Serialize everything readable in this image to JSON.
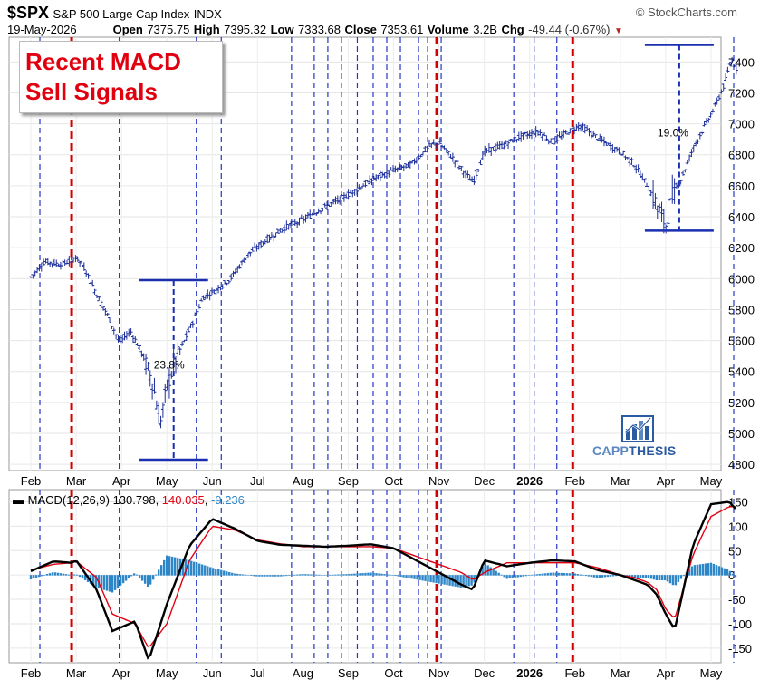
{
  "header": {
    "symbol": "$SPX",
    "name": "S&P 500 Large Cap Index",
    "exchange": "INDX",
    "date": "19-May-2026",
    "open_label": "Open",
    "open": "7375.75",
    "high_label": "High",
    "high": "7395.32",
    "low_label": "Low",
    "low": "7333.68",
    "close_label": "Close",
    "close": "7353.61",
    "volume_label": "Volume",
    "volume": "3.2B",
    "chg_label": "Chg",
    "chg": "-49.44 (-0.67%)",
    "chg_arrow": "▼",
    "watermark": "© StockCharts.com"
  },
  "annotation": {
    "line1": "Recent MACD",
    "line2": "Sell Signals",
    "color": "#e1000f"
  },
  "logo": {
    "word1": "CAPP",
    "word2": "THESIS",
    "icon": "bar-chart-trend-icon",
    "color": "#2c5aa0"
  },
  "macd_legend": {
    "prefix": "MACD(12,26,9)",
    "macd": "130.798",
    "signal": "140.035",
    "histogram": "-9.236",
    "macd_color": "#000000",
    "signal_color": "#e1000f",
    "histogram_color": "#2c86c8"
  },
  "colors": {
    "price_bars": "#1c2f9a",
    "blue_signal_lines": "#2436c4",
    "red_signal_lines": "#d40000",
    "brackets": "#1a2fb0"
  },
  "chart_data": [
    {
      "type": "line",
      "subtype": "ohlc",
      "title": "$SPX S&P 500 Large Cap Index INDX",
      "x_tick_labels": [
        "Feb",
        "Mar",
        "Apr",
        "May",
        "Jun",
        "Jul",
        "Aug",
        "Sep",
        "Oct",
        "Nov",
        "Dec",
        "2026",
        "Feb",
        "Mar",
        "Apr",
        "May"
      ],
      "y_ticks": [
        4800,
        5000,
        5200,
        5400,
        5600,
        5800,
        6000,
        6200,
        6400,
        6600,
        6800,
        7000,
        7200,
        7400
      ],
      "ylim": [
        4760,
        7560
      ],
      "grid": true,
      "x_months": [
        0,
        1,
        2,
        3,
        4,
        5,
        6,
        7,
        8,
        9,
        10,
        11,
        12,
        13,
        14,
        15,
        15.6
      ],
      "close_path": [
        {
          "t": 0.0,
          "v": 6010
        },
        {
          "t": 0.3,
          "v": 6110
        },
        {
          "t": 0.7,
          "v": 6090
        },
        {
          "t": 1.0,
          "v": 6140
        },
        {
          "t": 1.2,
          "v": 6060
        },
        {
          "t": 1.45,
          "v": 5900
        },
        {
          "t": 1.7,
          "v": 5760
        },
        {
          "t": 1.95,
          "v": 5590
        },
        {
          "t": 2.2,
          "v": 5660
        },
        {
          "t": 2.45,
          "v": 5520
        },
        {
          "t": 2.7,
          "v": 5320
        },
        {
          "t": 2.85,
          "v": 5050
        },
        {
          "t": 3.0,
          "v": 5300
        },
        {
          "t": 3.2,
          "v": 5480
        },
        {
          "t": 3.45,
          "v": 5640
        },
        {
          "t": 3.8,
          "v": 5880
        },
        {
          "t": 4.1,
          "v": 5930
        },
        {
          "t": 4.4,
          "v": 6000
        },
        {
          "t": 4.8,
          "v": 6160
        },
        {
          "t": 5.2,
          "v": 6250
        },
        {
          "t": 5.6,
          "v": 6330
        },
        {
          "t": 6.0,
          "v": 6380
        },
        {
          "t": 6.4,
          "v": 6450
        },
        {
          "t": 6.8,
          "v": 6510
        },
        {
          "t": 7.2,
          "v": 6580
        },
        {
          "t": 7.6,
          "v": 6650
        },
        {
          "t": 8.0,
          "v": 6700
        },
        {
          "t": 8.4,
          "v": 6740
        },
        {
          "t": 8.8,
          "v": 6860
        },
        {
          "t": 9.0,
          "v": 6880
        },
        {
          "t": 9.3,
          "v": 6780
        },
        {
          "t": 9.55,
          "v": 6690
        },
        {
          "t": 9.75,
          "v": 6620
        },
        {
          "t": 10.0,
          "v": 6820
        },
        {
          "t": 10.4,
          "v": 6860
        },
        {
          "t": 10.8,
          "v": 6920
        },
        {
          "t": 11.2,
          "v": 6950
        },
        {
          "t": 11.5,
          "v": 6880
        },
        {
          "t": 11.8,
          "v": 6940
        },
        {
          "t": 12.1,
          "v": 6990
        },
        {
          "t": 12.4,
          "v": 6930
        },
        {
          "t": 12.7,
          "v": 6870
        },
        {
          "t": 13.0,
          "v": 6820
        },
        {
          "t": 13.3,
          "v": 6740
        },
        {
          "t": 13.6,
          "v": 6600
        },
        {
          "t": 13.85,
          "v": 6450
        },
        {
          "t": 14.0,
          "v": 6340
        },
        {
          "t": 14.15,
          "v": 6540
        },
        {
          "t": 14.35,
          "v": 6650
        },
        {
          "t": 14.6,
          "v": 6840
        },
        {
          "t": 14.85,
          "v": 6980
        },
        {
          "t": 15.1,
          "v": 7120
        },
        {
          "t": 15.3,
          "v": 7260
        },
        {
          "t": 15.45,
          "v": 7420
        },
        {
          "t": 15.55,
          "v": 7360
        },
        {
          "t": 15.6,
          "v": 7354
        }
      ],
      "annotations": [
        {
          "label": "23.8%",
          "low": 4830,
          "high": 5990,
          "x_month": 3.15
        },
        {
          "label": "19.0%",
          "low": 6310,
          "high": 7510,
          "x_month": 14.3
        }
      ],
      "blue_vlines_month": [
        0.2,
        1.95,
        3.65,
        4.2,
        5.75,
        6.25,
        6.55,
        6.85,
        7.2,
        7.55,
        7.85,
        8.15,
        8.55,
        8.75,
        9.05,
        10.65,
        11.1,
        11.6,
        15.5
      ],
      "red_vlines_month": [
        0.9,
        8.95,
        11.95
      ]
    },
    {
      "type": "line",
      "title": "MACD(12,26,9)",
      "series": [
        {
          "name": "MACD",
          "values": [
            8,
            28,
            25,
            30,
            -30,
            -115,
            -95,
            -175,
            -60,
            60,
            115,
            95,
            70,
            62,
            60,
            58,
            60,
            63,
            55,
            -20,
            -30,
            30,
            18,
            25,
            30,
            28,
            10,
            0,
            -10,
            -20,
            -40,
            -80,
            -112,
            60,
            145,
            150,
            130
          ]
        },
        {
          "name": "Signal",
          "values": [
            10,
            22,
            25,
            28,
            -5,
            -80,
            -100,
            -150,
            -100,
            30,
            100,
            92,
            72,
            64,
            58,
            58,
            58,
            58,
            55,
            5,
            -10,
            5,
            25,
            25,
            25,
            25,
            15,
            0,
            -5,
            -15,
            -30,
            -70,
            -90,
            40,
            120,
            140,
            140
          ]
        },
        {
          "name": "Histogram",
          "values": [
            -8,
            6,
            0,
            2,
            -25,
            -35,
            5,
            -25,
            40,
            30,
            15,
            3,
            -2,
            -2,
            2,
            0,
            2,
            5,
            0,
            -25,
            -20,
            25,
            -7,
            0,
            5,
            3,
            -5,
            0,
            -5,
            -5,
            -10,
            -10,
            -22,
            20,
            25,
            10,
            -9
          ]
        }
      ],
      "x_months": [
        0,
        0.5,
        0.9,
        1.0,
        1.45,
        1.8,
        2.3,
        2.6,
        3.0,
        3.5,
        4.0,
        4.5,
        5.0,
        5.5,
        6.0,
        6.5,
        7.0,
        7.5,
        8.0,
        9.5,
        9.75,
        10.0,
        10.5,
        11.0,
        11.5,
        12.0,
        12.5,
        13.0,
        13.3,
        13.6,
        13.8,
        14.0,
        14.2,
        14.6,
        15.0,
        15.4,
        15.6
      ],
      "y_ticks": [
        -150,
        -100,
        -50,
        0,
        50,
        100,
        150
      ],
      "ylim": [
        -180,
        175
      ],
      "x_tick_labels": [
        "Feb",
        "Mar",
        "Apr",
        "May",
        "Jun",
        "Jul",
        "Aug",
        "Sep",
        "Oct",
        "Nov",
        "Dec",
        "2026",
        "Feb",
        "Mar",
        "Apr",
        "May"
      ],
      "grid": true
    }
  ]
}
